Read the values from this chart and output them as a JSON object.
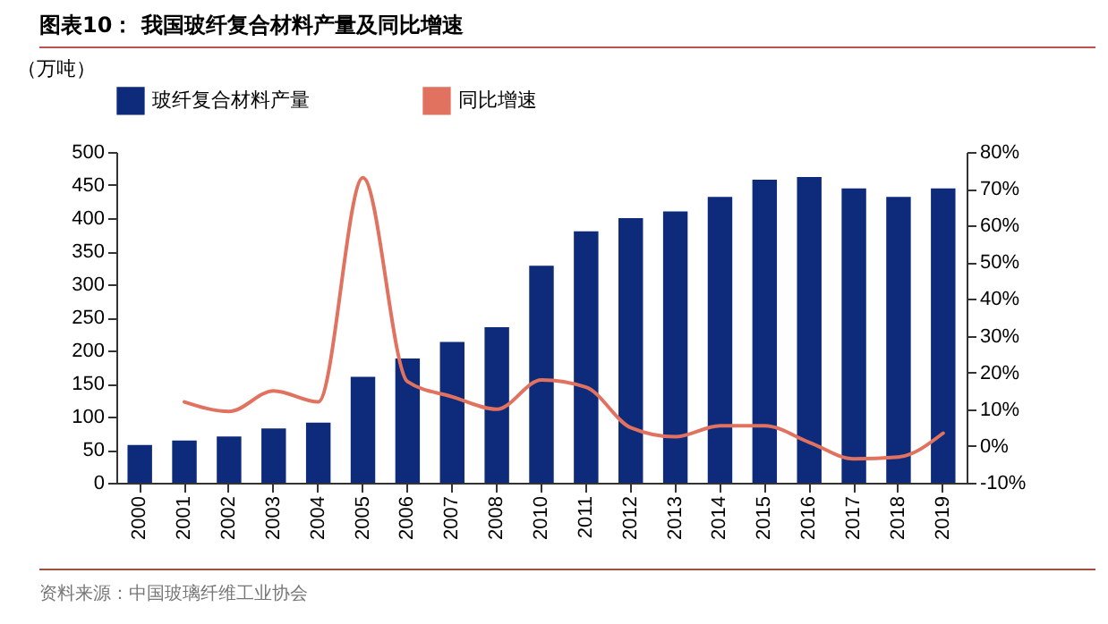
{
  "chart_data": {
    "type": "bar",
    "title": "图表10：  我国玻纤复合材料产量及同比增速",
    "ylabel": "（万吨）",
    "categories": [
      "2000",
      "2001",
      "2002",
      "2003",
      "2004",
      "2005",
      "2006",
      "2007",
      "2008",
      "2010",
      "2011",
      "2012",
      "2013",
      "2014",
      "2015",
      "2016",
      "2017",
      "2018",
      "2019"
    ],
    "series": [
      {
        "name": "玻纤复合材料产量",
        "color": "#0d2b7a",
        "values": [
          57,
          64,
          70,
          82,
          91,
          160,
          188,
          213,
          235,
          328,
          380,
          400,
          410,
          432,
          458,
          462,
          445,
          432,
          445
        ]
      },
      {
        "name": "同比增速",
        "type": "line",
        "axis": "y2",
        "color": "#e0725f",
        "values": [
          null,
          12,
          9.4,
          15,
          12,
          73,
          17.5,
          13.4,
          10,
          18,
          16,
          5,
          2.5,
          5.5,
          5.5,
          1,
          -3.5,
          -3,
          3.5
        ]
      }
    ],
    "ylim": [
      0,
      500
    ],
    "yticks": [
      0,
      50,
      100,
      150,
      200,
      250,
      300,
      350,
      400,
      450,
      500
    ],
    "y2lim": [
      -10,
      80
    ],
    "y2ticks": [
      {
        "value": -10,
        "label": "-10%"
      },
      {
        "value": 0,
        "label": "0%"
      },
      {
        "value": 10,
        "label": "10%"
      },
      {
        "value": 20,
        "label": "20%"
      },
      {
        "value": 30,
        "label": "30%"
      },
      {
        "value": 40,
        "label": "40%"
      },
      {
        "value": 50,
        "label": "50%"
      },
      {
        "value": 60,
        "label": "60%"
      },
      {
        "value": 70,
        "label": "70%"
      },
      {
        "value": 80,
        "label": "80%"
      }
    ],
    "legend": "top",
    "grid": false,
    "annotations": [
      "资料来源：中国玻璃纤维工业协会"
    ]
  }
}
